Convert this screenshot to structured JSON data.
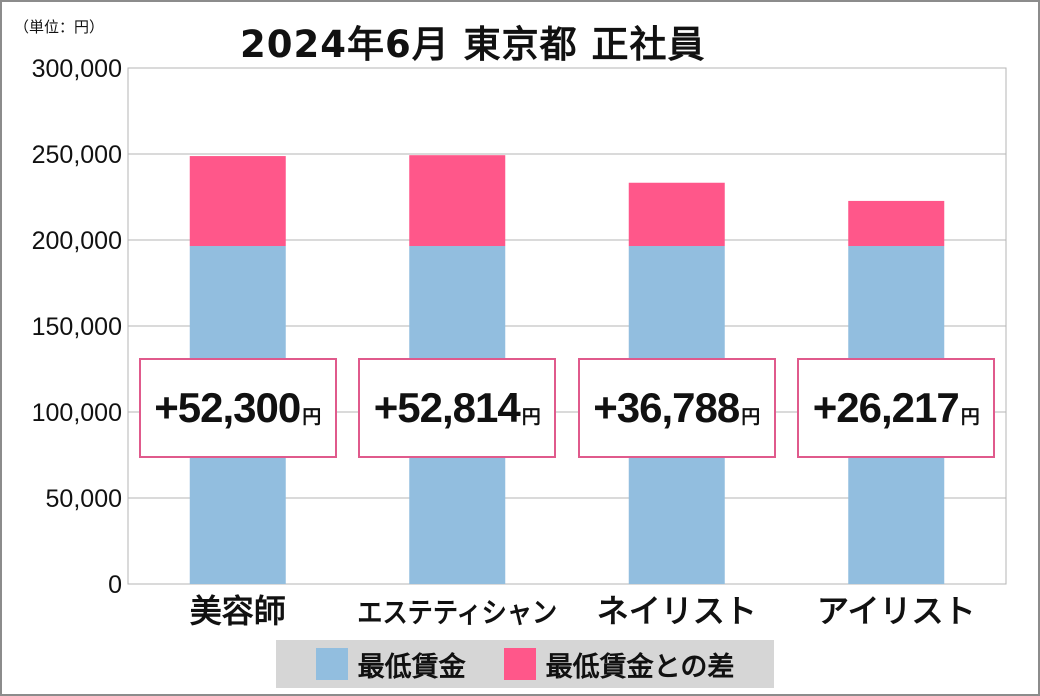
{
  "header": {
    "unit": "（単位：円）",
    "title": "2024年6月 東京都 正社員"
  },
  "chart_data": {
    "type": "bar",
    "stacked": true,
    "title": "2024年6月 東京都 正社員",
    "unit_label": "（単位：円）",
    "categories": [
      "美容師",
      "エステティシャン",
      "ネイリスト",
      "アイリスト"
    ],
    "series": [
      {
        "name": "最低賃金",
        "color": "#92bedf",
        "values": [
          196500,
          196500,
          196500,
          196500
        ]
      },
      {
        "name": "最低賃金との差",
        "color": "#ff578a",
        "values": [
          52300,
          52814,
          36788,
          26217
        ]
      }
    ],
    "difference_labels": [
      "+52,300",
      "+52,814",
      "+36,788",
      "+26,217"
    ],
    "difference_unit": "円",
    "ylim": [
      0,
      300000
    ],
    "yticks": [
      0,
      50000,
      100000,
      150000,
      200000,
      250000,
      300000
    ],
    "ytick_labels": [
      "0",
      "50,000",
      "100,000",
      "150,000",
      "200,000",
      "250,000",
      "300,000"
    ],
    "grid": true,
    "legend_position": "bottom"
  },
  "legend": {
    "items": [
      {
        "label": "最低賃金",
        "color": "#92bedf"
      },
      {
        "label": "最低賃金との差",
        "color": "#ff578a"
      }
    ]
  }
}
